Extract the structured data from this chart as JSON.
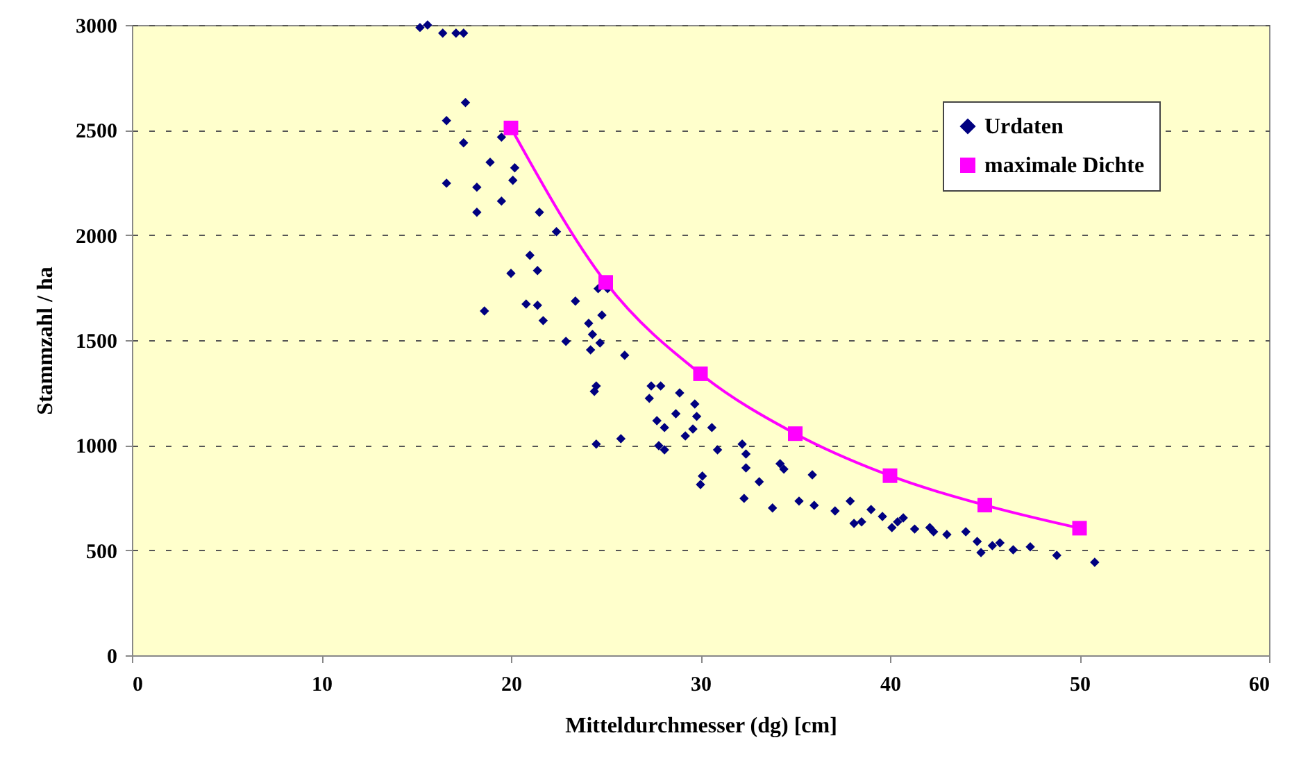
{
  "chart_data": {
    "type": "scatter",
    "xlabel": "Mitteldurchmesser (dg) [cm]",
    "ylabel": "Stammzahl / ha",
    "xlim": [
      0,
      60
    ],
    "xticks": [
      0,
      10,
      20,
      30,
      40,
      50,
      60
    ],
    "ylim": [
      0,
      3000
    ],
    "yticks": [
      0,
      500,
      1000,
      1500,
      2000,
      2500,
      3000
    ],
    "grid": "y",
    "legend": "top right",
    "series": [
      {
        "name": "Urdaten",
        "marker": "diamond",
        "color": "#000080",
        "x": [
          15.2,
          15.6,
          16.4,
          17.1,
          17.5,
          17.6,
          19.5,
          16.6,
          17.5,
          18.9,
          20.2,
          20.1,
          16.6,
          18.2,
          19.5,
          18.2,
          21.5,
          22.4,
          21.0,
          20.0,
          21.4,
          18.6,
          20.8,
          21.4,
          21.7,
          23.4,
          24.6,
          25.1,
          24.1,
          24.8,
          24.3,
          24.7,
          22.9,
          24.2,
          26.0,
          24.5,
          24.4,
          24.5,
          25.8,
          27.4,
          27.9,
          27.3,
          28.9,
          29.7,
          28.7,
          29.8,
          27.7,
          28.1,
          29.6,
          29.2,
          30.6,
          27.8,
          28.1,
          30.9,
          32.2,
          32.4,
          32.4,
          30.1,
          30.0,
          33.1,
          32.3,
          33.8,
          34.2,
          34.4,
          35.9,
          35.2,
          36.0,
          37.1,
          37.9,
          38.1,
          38.5,
          39.0,
          39.6,
          40.1,
          40.4,
          40.7,
          41.3,
          42.1,
          42.3,
          43.0,
          44.0,
          44.6,
          44.8,
          45.4,
          45.8,
          46.5,
          47.4,
          48.8,
          50.8
        ],
        "values": [
          2988,
          3000,
          2961,
          2961,
          2961,
          2631,
          2466,
          2545,
          2439,
          2347,
          2320,
          2261,
          2247,
          2228,
          2162,
          2109,
          2109,
          2016,
          1904,
          1818,
          1831,
          1639,
          1672,
          1666,
          1593,
          1686,
          1745,
          1745,
          1580,
          1619,
          1527,
          1487,
          1494,
          1454,
          1428,
          1282,
          1256,
          1005,
          1031,
          1282,
          1282,
          1223,
          1249,
          1196,
          1150,
          1137,
          1117,
          1084,
          1077,
          1044,
          1084,
          998,
          978,
          978,
          1005,
          958,
          892,
          853,
          813,
          826,
          747,
          701,
          912,
          886,
          859,
          734,
          714,
          687,
          734,
          628,
          635,
          694,
          661,
          608,
          635,
          654,
          601,
          608,
          588,
          575,
          588,
          542,
          489,
          522,
          535,
          502,
          516,
          476,
          443
        ]
      },
      {
        "name": "maximale Dichte",
        "type": "line",
        "marker": "square",
        "color": "#ff00ff",
        "x": [
          20,
          25,
          30,
          35,
          40,
          45,
          50
        ],
        "values": [
          2510,
          1775,
          1340,
          1055,
          855,
          715,
          605
        ]
      }
    ]
  }
}
